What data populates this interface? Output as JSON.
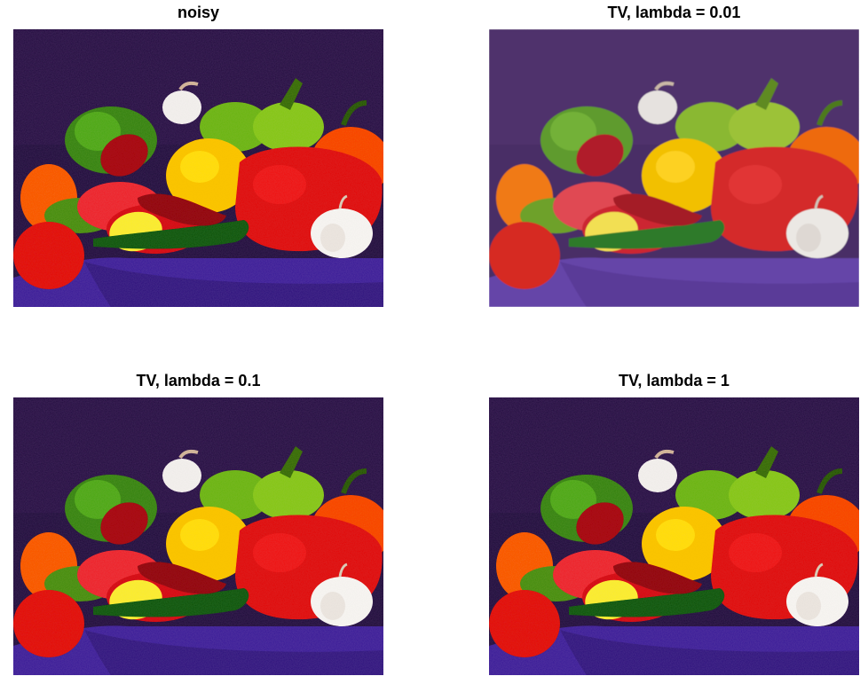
{
  "figure": {
    "panels": [
      {
        "title": "noisy"
      },
      {
        "title": "TV, lambda = 0.01"
      },
      {
        "title": "TV, lambda = 0.1"
      },
      {
        "title": "TV, lambda = 1"
      }
    ]
  },
  "palette": {
    "backdrop": "#4a2f66",
    "cloth": "#5b3f9a",
    "red_pepper": "#d42a2a",
    "yellow_pepper": "#f2c000",
    "green_pepper": "#5fa030",
    "orange_pepper": "#ee6a10",
    "garlic": "#e8e6e2"
  }
}
